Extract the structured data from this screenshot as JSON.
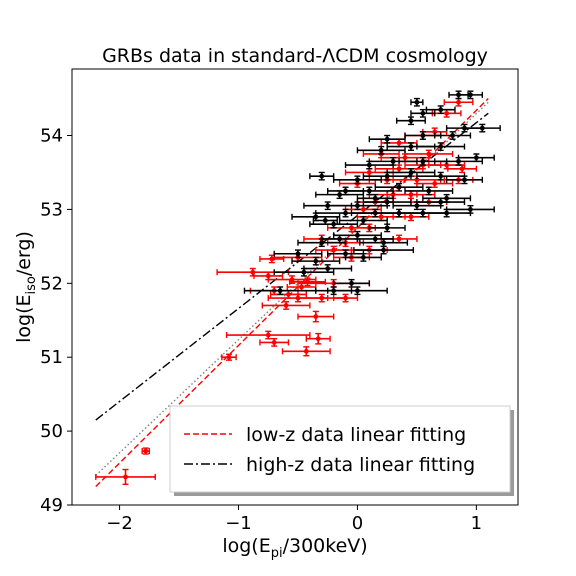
{
  "chart_data": {
    "type": "scatter",
    "title": "GRBs data in standard-ΛCDM cosmology",
    "xlabel": "log(E",
    "xlabel_sub": "pi",
    "xlabel_end": "/300keV)",
    "ylabel": "log(E",
    "ylabel_sub": "iso",
    "ylabel_end": "/erg)",
    "xlim": [
      -2.4,
      1.35
    ],
    "ylim": [
      49.0,
      54.9
    ],
    "xticks": [
      -2,
      -1,
      0,
      1
    ],
    "xtick_labels": [
      "−2",
      "−1",
      "0",
      "1"
    ],
    "yticks": [
      49,
      50,
      51,
      52,
      53,
      54
    ],
    "ytick_labels": [
      "49",
      "50",
      "51",
      "52",
      "53",
      "54"
    ],
    "legend": {
      "placement": "lower-right",
      "entries": [
        "low-z data linear fitting",
        "high-z data linear fitting"
      ]
    },
    "colors": {
      "low_z": "#ff0000",
      "high_z": "#000000",
      "dotted": "#808080"
    },
    "lines": [
      {
        "name": "low-z data linear fitting",
        "style": "dashed",
        "color": "#ff0000",
        "x": [
          -2.2,
          1.1
        ],
        "y": [
          49.25,
          54.5
        ]
      },
      {
        "name": "high-z data linear fitting",
        "style": "dashdot",
        "color": "#000000",
        "x": [
          -2.2,
          1.1
        ],
        "y": [
          50.15,
          54.3
        ]
      },
      {
        "style": "dotted",
        "color": "#808080",
        "x": [
          -2.2,
          1.1
        ],
        "y": [
          49.4,
          54.45
        ]
      }
    ],
    "series": [
      {
        "name": "low-z",
        "color": "#ff0000",
        "points": [
          [
            -1.95,
            49.38,
            0.25,
            0.1
          ],
          [
            -1.78,
            49.73,
            0.03,
            0.04
          ],
          [
            -1.08,
            51.0,
            0.06,
            0.04
          ],
          [
            -0.75,
            51.3,
            0.35,
            0.05
          ],
          [
            -0.7,
            51.2,
            0.12,
            0.05
          ],
          [
            -0.43,
            51.08,
            0.2,
            0.06
          ],
          [
            -0.33,
            51.25,
            0.1,
            0.07
          ],
          [
            -0.35,
            51.55,
            0.15,
            0.07
          ],
          [
            -0.6,
            51.7,
            0.2,
            0.05
          ],
          [
            -0.5,
            51.8,
            0.25,
            0.05
          ],
          [
            -0.3,
            51.8,
            0.2,
            0.05
          ],
          [
            -0.1,
            51.8,
            0.1,
            0.05
          ],
          [
            -0.2,
            52.0,
            0.3,
            0.05
          ],
          [
            -0.42,
            52.02,
            0.15,
            0.05
          ],
          [
            -0.88,
            52.15,
            0.3,
            0.05
          ],
          [
            -0.72,
            52.33,
            0.1,
            0.05
          ],
          [
            -0.5,
            52.35,
            0.2,
            0.05
          ],
          [
            -0.47,
            51.95,
            0.12,
            0.05
          ],
          [
            -0.55,
            52.05,
            0.2,
            0.05
          ],
          [
            -0.75,
            52.1,
            0.12,
            0.05
          ],
          [
            -0.3,
            52.6,
            0.15,
            0.05
          ],
          [
            -0.1,
            52.55,
            0.15,
            0.05
          ],
          [
            -0.05,
            52.75,
            0.2,
            0.05
          ],
          [
            0.1,
            52.75,
            0.15,
            0.05
          ],
          [
            0.2,
            52.9,
            0.2,
            0.05
          ],
          [
            0.35,
            52.6,
            0.15,
            0.05
          ],
          [
            0.05,
            53.0,
            0.15,
            0.05
          ],
          [
            0.15,
            53.1,
            0.15,
            0.05
          ],
          [
            0.3,
            53.2,
            0.2,
            0.05
          ],
          [
            0.45,
            53.2,
            0.2,
            0.05
          ],
          [
            0.0,
            53.35,
            0.15,
            0.05
          ],
          [
            0.25,
            53.4,
            0.15,
            0.05
          ],
          [
            0.5,
            53.4,
            0.2,
            0.05
          ],
          [
            0.65,
            53.35,
            0.15,
            0.05
          ],
          [
            0.1,
            53.5,
            0.2,
            0.05
          ],
          [
            0.35,
            53.55,
            0.2,
            0.05
          ],
          [
            0.55,
            53.6,
            0.15,
            0.05
          ],
          [
            0.75,
            53.6,
            0.15,
            0.05
          ],
          [
            0.2,
            53.75,
            0.15,
            0.05
          ],
          [
            0.4,
            53.7,
            0.2,
            0.05
          ],
          [
            0.6,
            53.75,
            0.2,
            0.05
          ],
          [
            0.35,
            53.9,
            0.15,
            0.05
          ],
          [
            0.55,
            54.0,
            0.15,
            0.05
          ],
          [
            0.65,
            54.05,
            0.1,
            0.05
          ],
          [
            0.75,
            54.3,
            0.12,
            0.05
          ],
          [
            0.85,
            54.45,
            0.12,
            0.05
          ],
          [
            0.88,
            53.55,
            0.12,
            0.05
          ],
          [
            0.85,
            53.4,
            0.12,
            0.05
          ],
          [
            0.45,
            52.9,
            0.15,
            0.05
          ],
          [
            0.6,
            53.1,
            0.15,
            0.05
          ],
          [
            -0.05,
            52.35,
            0.15,
            0.05
          ],
          [
            -0.2,
            52.45,
            0.15,
            0.05
          ],
          [
            0.1,
            52.45,
            0.15,
            0.05
          ],
          [
            -0.58,
            51.85,
            0.15,
            0.05
          ],
          [
            -0.7,
            51.9,
            0.2,
            0.05
          ]
        ]
      },
      {
        "name": "high-z",
        "color": "#000000",
        "points": [
          [
            -0.65,
            51.9,
            0.3,
            0.05
          ],
          [
            -0.2,
            51.9,
            0.15,
            0.05
          ],
          [
            0.0,
            51.9,
            0.25,
            0.05
          ],
          [
            -0.05,
            52.0,
            0.15,
            0.05
          ],
          [
            -0.45,
            52.15,
            0.25,
            0.05
          ],
          [
            -0.25,
            52.2,
            0.2,
            0.05
          ],
          [
            -0.35,
            52.3,
            0.2,
            0.05
          ],
          [
            -0.5,
            52.4,
            0.2,
            0.05
          ],
          [
            -0.1,
            52.4,
            0.15,
            0.05
          ],
          [
            0.05,
            52.35,
            0.15,
            0.05
          ],
          [
            -0.3,
            52.55,
            0.2,
            0.05
          ],
          [
            -0.15,
            52.6,
            0.15,
            0.05
          ],
          [
            0.0,
            52.65,
            0.2,
            0.05
          ],
          [
            0.15,
            52.6,
            0.15,
            0.05
          ],
          [
            0.22,
            52.45,
            0.25,
            0.05
          ],
          [
            -0.2,
            52.8,
            0.2,
            0.05
          ],
          [
            0.05,
            52.85,
            0.2,
            0.05
          ],
          [
            0.25,
            52.75,
            0.15,
            0.05
          ],
          [
            -0.35,
            52.9,
            0.2,
            0.05
          ],
          [
            -0.1,
            52.95,
            0.25,
            0.05
          ],
          [
            0.15,
            52.95,
            0.2,
            0.05
          ],
          [
            0.35,
            52.95,
            0.2,
            0.05
          ],
          [
            0.55,
            52.95,
            0.2,
            0.05
          ],
          [
            0.75,
            52.95,
            0.2,
            0.05
          ],
          [
            -0.25,
            53.05,
            0.2,
            0.05
          ],
          [
            0.0,
            53.05,
            0.25,
            0.05
          ],
          [
            0.25,
            53.1,
            0.2,
            0.05
          ],
          [
            0.5,
            53.05,
            0.2,
            0.05
          ],
          [
            0.7,
            53.1,
            0.2,
            0.05
          ],
          [
            0.95,
            53.0,
            0.2,
            0.05
          ],
          [
            -0.15,
            53.2,
            0.2,
            0.05
          ],
          [
            0.1,
            53.25,
            0.2,
            0.05
          ],
          [
            0.35,
            53.3,
            0.2,
            0.05
          ],
          [
            0.6,
            53.25,
            0.2,
            0.05
          ],
          [
            0.0,
            53.4,
            0.2,
            0.05
          ],
          [
            0.25,
            53.45,
            0.2,
            0.05
          ],
          [
            0.45,
            53.5,
            0.2,
            0.05
          ],
          [
            0.7,
            53.45,
            0.2,
            0.05
          ],
          [
            0.9,
            53.4,
            0.15,
            0.05
          ],
          [
            0.1,
            53.6,
            0.2,
            0.05
          ],
          [
            0.3,
            53.65,
            0.2,
            0.05
          ],
          [
            0.55,
            53.65,
            0.2,
            0.05
          ],
          [
            0.85,
            53.65,
            0.2,
            0.05
          ],
          [
            0.2,
            53.8,
            0.2,
            0.05
          ],
          [
            0.45,
            53.85,
            0.2,
            0.05
          ],
          [
            0.7,
            53.85,
            0.2,
            0.05
          ],
          [
            0.25,
            53.95,
            0.15,
            0.05
          ],
          [
            0.55,
            54.0,
            0.15,
            0.05
          ],
          [
            0.8,
            54.0,
            0.15,
            0.05
          ],
          [
            0.45,
            54.2,
            0.12,
            0.05
          ],
          [
            0.55,
            54.3,
            0.1,
            0.05
          ],
          [
            0.7,
            54.35,
            0.12,
            0.05
          ],
          [
            0.85,
            54.55,
            0.08,
            0.05
          ],
          [
            0.95,
            54.55,
            0.1,
            0.05
          ],
          [
            0.5,
            54.45,
            0.05,
            0.05
          ],
          [
            0.9,
            54.1,
            0.15,
            0.05
          ],
          [
            1.05,
            54.1,
            0.15,
            0.05
          ],
          [
            0.75,
            53.15,
            0.2,
            0.05
          ],
          [
            -0.1,
            53.25,
            0.15,
            0.05
          ],
          [
            -0.3,
            53.45,
            0.1,
            0.05
          ],
          [
            -0.27,
            52.85,
            0.1,
            0.05
          ],
          [
            0.22,
            52.55,
            0.2,
            0.05
          ],
          [
            1.0,
            53.7,
            0.15,
            0.05
          ],
          [
            0.15,
            53.15,
            0.15,
            0.05
          ]
        ]
      }
    ]
  }
}
